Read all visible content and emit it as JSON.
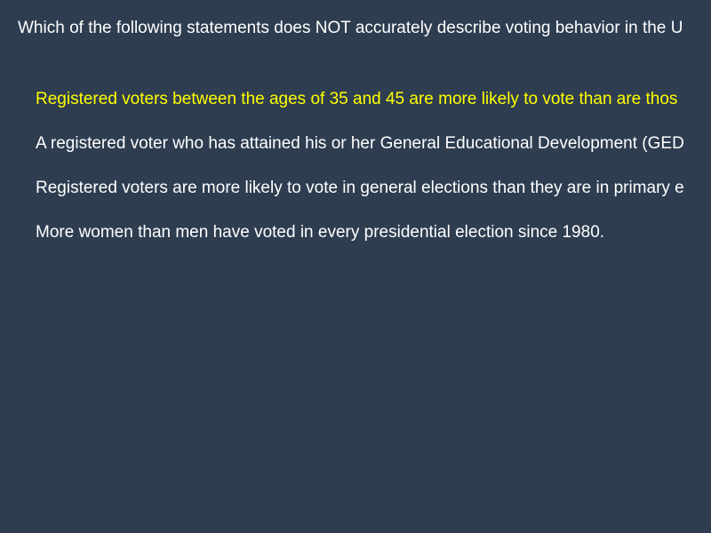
{
  "question": {
    "text": "Which of the following statements does NOT accurately describe voting behavior in the U"
  },
  "options": [
    {
      "text": "Registered voters between the ages of 35 and 45 are more likely to vote than are thos",
      "selected": true
    },
    {
      "text": "A registered voter who has attained his or her General Educational Development (GED",
      "selected": false
    },
    {
      "text": "Registered voters are more likely to vote in general elections than they are in primary e",
      "selected": false
    },
    {
      "text": "More women than men have voted in every presidential election since 1980.",
      "selected": false
    }
  ],
  "colors": {
    "background": "#2e3d50",
    "text": "#ffffff",
    "highlight": "#ffff00"
  }
}
